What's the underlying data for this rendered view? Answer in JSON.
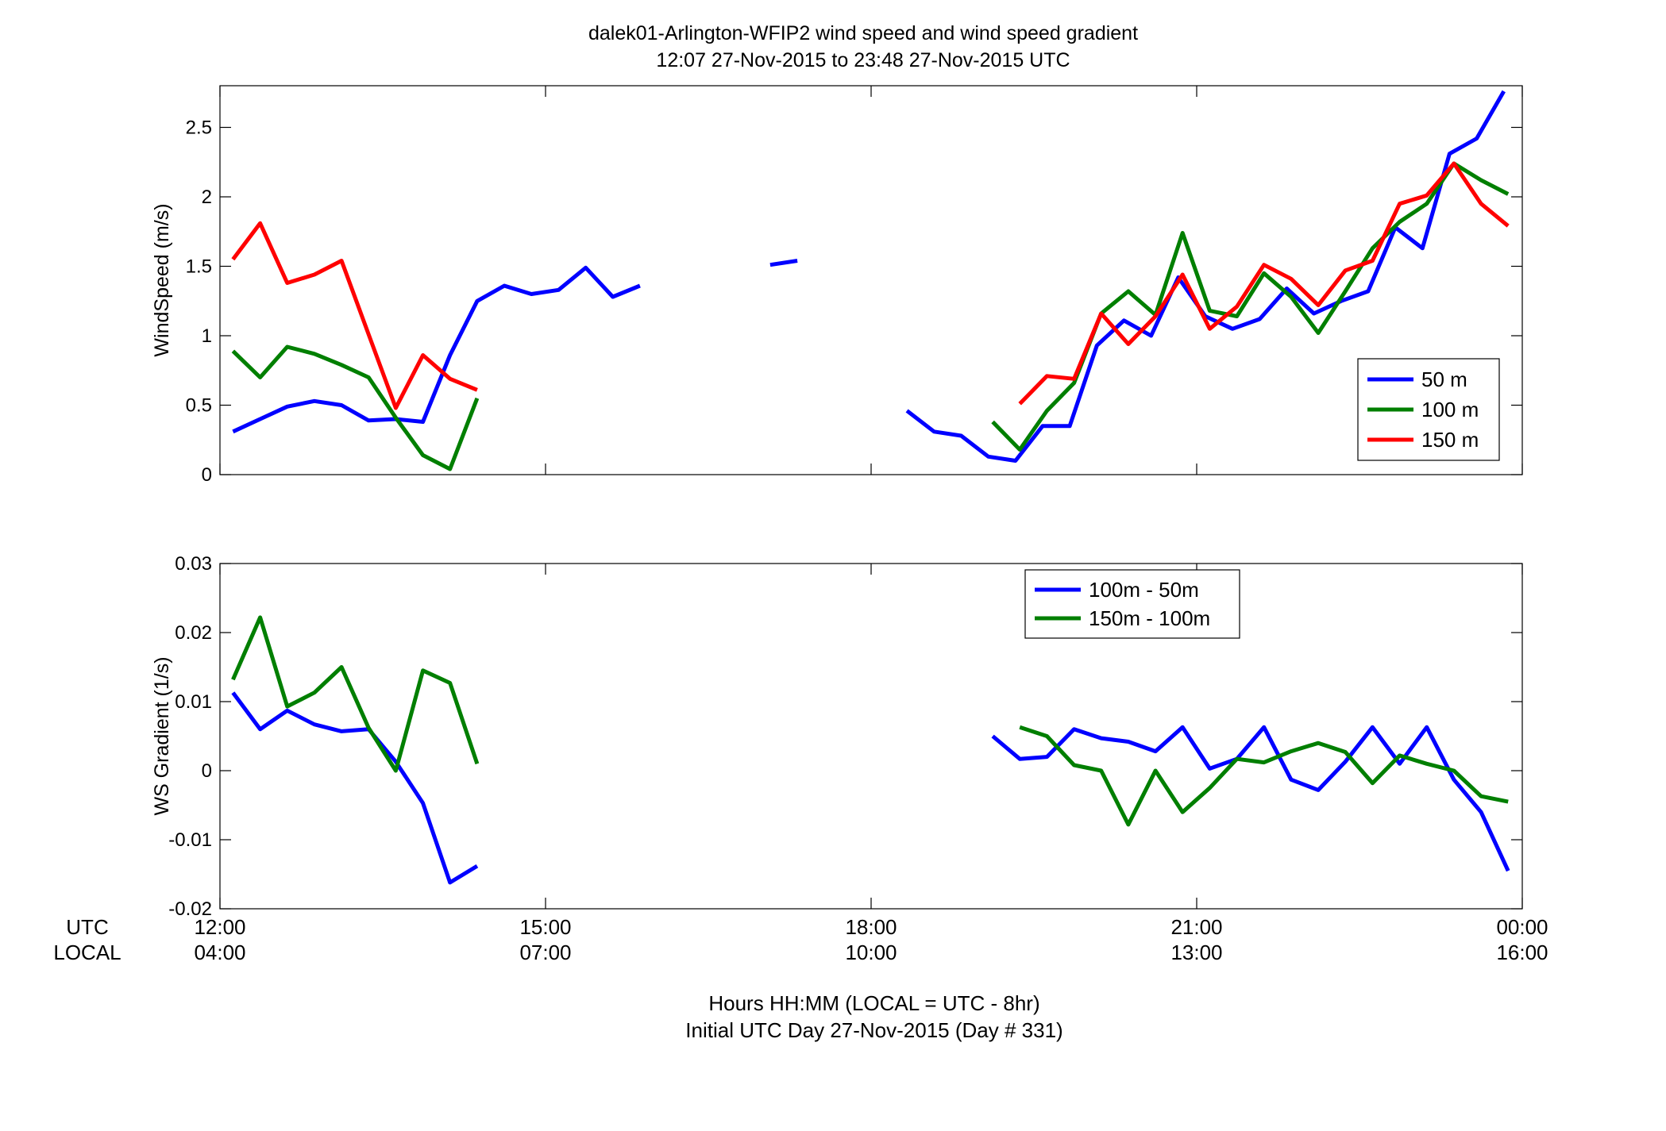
{
  "title": {
    "line1": "dalek01-Arlington-WFIP2  wind speed and wind speed gradient",
    "line2": "12:07 27-Nov-2015 to 23:48 27-Nov-2015  UTC"
  },
  "x_axis": {
    "row_labels": [
      "UTC",
      "LOCAL"
    ],
    "utc_ticks": [
      "12:00",
      "15:00",
      "18:00",
      "21:00",
      "00:00"
    ],
    "local_ticks": [
      "04:00",
      "07:00",
      "10:00",
      "13:00",
      "16:00"
    ],
    "caption_line1": "Hours HH:MM  (LOCAL = UTC - 8hr)",
    "caption_line2": "Initial UTC Day 27-Nov-2015 (Day # 331)"
  },
  "chart_data": [
    {
      "type": "line",
      "ylabel": "WindSpeed (m/s)",
      "xlim": [
        12,
        24
      ],
      "ylim": [
        0,
        2.8
      ],
      "yticks": [
        0,
        0.5,
        1,
        1.5,
        2,
        2.5
      ],
      "ytick_labels": [
        "0",
        "0.5",
        "1",
        "1.5",
        "2",
        "2.5"
      ],
      "xticks": [
        12,
        15,
        18,
        21,
        24
      ],
      "legend_position": "lower-right",
      "series": [
        {
          "name": "50 m",
          "color": "#0000FF",
          "segments": [
            [
              [
                12.12,
                0.31
              ],
              [
                12.37,
                0.4
              ],
              [
                12.62,
                0.49
              ],
              [
                12.87,
                0.53
              ],
              [
                13.12,
                0.5
              ],
              [
                13.37,
                0.39
              ],
              [
                13.62,
                0.4
              ],
              [
                13.87,
                0.38
              ],
              [
                14.12,
                0.86
              ],
              [
                14.37,
                1.25
              ],
              [
                14.62,
                1.36
              ],
              [
                14.87,
                1.3
              ],
              [
                15.12,
                1.33
              ],
              [
                15.37,
                1.49
              ],
              [
                15.62,
                1.28
              ],
              [
                15.87,
                1.36
              ]
            ],
            [
              [
                17.07,
                1.51
              ],
              [
                17.32,
                1.54
              ]
            ],
            [
              [
                18.33,
                0.46
              ],
              [
                18.58,
                0.31
              ],
              [
                18.83,
                0.28
              ],
              [
                19.08,
                0.13
              ],
              [
                19.33,
                0.1
              ],
              [
                19.58,
                0.35
              ],
              [
                19.83,
                0.35
              ],
              [
                20.08,
                0.93
              ],
              [
                20.33,
                1.11
              ],
              [
                20.58,
                1.0
              ],
              [
                20.83,
                1.42
              ],
              [
                21.08,
                1.14
              ],
              [
                21.33,
                1.05
              ],
              [
                21.58,
                1.12
              ],
              [
                21.83,
                1.34
              ],
              [
                22.08,
                1.16
              ],
              [
                22.33,
                1.25
              ],
              [
                22.58,
                1.32
              ],
              [
                22.83,
                1.78
              ],
              [
                23.08,
                1.63
              ],
              [
                23.33,
                2.31
              ],
              [
                23.58,
                2.42
              ],
              [
                23.83,
                2.76
              ]
            ]
          ]
        },
        {
          "name": "100 m",
          "color": "#007F00",
          "segments": [
            [
              [
                12.12,
                0.89
              ],
              [
                12.37,
                0.7
              ],
              [
                12.62,
                0.92
              ],
              [
                12.87,
                0.87
              ],
              [
                13.12,
                0.79
              ],
              [
                13.37,
                0.7
              ],
              [
                13.62,
                0.41
              ],
              [
                13.87,
                0.14
              ],
              [
                14.12,
                0.04
              ],
              [
                14.37,
                0.55
              ]
            ],
            [
              [
                19.12,
                0.38
              ],
              [
                19.37,
                0.18
              ],
              [
                19.62,
                0.46
              ],
              [
                19.87,
                0.66
              ],
              [
                20.12,
                1.16
              ],
              [
                20.37,
                1.32
              ],
              [
                20.62,
                1.15
              ],
              [
                20.87,
                1.74
              ],
              [
                21.12,
                1.18
              ],
              [
                21.37,
                1.14
              ],
              [
                21.62,
                1.45
              ],
              [
                21.87,
                1.28
              ],
              [
                22.12,
                1.02
              ],
              [
                22.37,
                1.32
              ],
              [
                22.62,
                1.63
              ],
              [
                22.87,
                1.82
              ],
              [
                23.12,
                1.95
              ],
              [
                23.37,
                2.24
              ],
              [
                23.62,
                2.12
              ],
              [
                23.87,
                2.02
              ]
            ]
          ]
        },
        {
          "name": "150 m",
          "color": "#FF0000",
          "segments": [
            [
              [
                12.12,
                1.55
              ],
              [
                12.37,
                1.81
              ],
              [
                12.62,
                1.38
              ],
              [
                12.87,
                1.44
              ],
              [
                13.12,
                1.54
              ],
              [
                13.37,
                1.01
              ],
              [
                13.62,
                0.48
              ],
              [
                13.87,
                0.86
              ],
              [
                14.12,
                0.69
              ],
              [
                14.37,
                0.61
              ]
            ],
            [
              [
                19.37,
                0.51
              ],
              [
                19.62,
                0.71
              ],
              [
                19.87,
                0.69
              ],
              [
                20.12,
                1.16
              ],
              [
                20.37,
                0.94
              ],
              [
                20.62,
                1.14
              ],
              [
                20.87,
                1.44
              ],
              [
                21.12,
                1.05
              ],
              [
                21.37,
                1.21
              ],
              [
                21.62,
                1.51
              ],
              [
                21.87,
                1.41
              ],
              [
                22.12,
                1.22
              ],
              [
                22.37,
                1.47
              ],
              [
                22.62,
                1.54
              ],
              [
                22.87,
                1.95
              ],
              [
                23.12,
                2.01
              ],
              [
                23.37,
                2.24
              ],
              [
                23.62,
                1.95
              ],
              [
                23.87,
                1.79
              ]
            ]
          ]
        }
      ]
    },
    {
      "type": "line",
      "ylabel": "WS Gradient (1/s)",
      "xlim": [
        12,
        24
      ],
      "ylim": [
        -0.02,
        0.03
      ],
      "yticks": [
        -0.02,
        -0.01,
        0,
        0.01,
        0.02,
        0.03
      ],
      "ytick_labels": [
        "-0.02",
        "-0.01",
        "0",
        "0.01",
        "0.02",
        "0.03"
      ],
      "xticks": [
        12,
        15,
        18,
        21,
        24
      ],
      "legend_position": "top-center",
      "series": [
        {
          "name": "100m - 50m",
          "color": "#0000FF",
          "segments": [
            [
              [
                12.12,
                0.0113
              ],
              [
                12.37,
                0.006
              ],
              [
                12.62,
                0.0087
              ],
              [
                12.87,
                0.0067
              ],
              [
                13.12,
                0.0057
              ],
              [
                13.37,
                0.006
              ],
              [
                13.62,
                0.0013
              ],
              [
                13.87,
                -0.0047
              ],
              [
                14.12,
                -0.0162
              ],
              [
                14.37,
                -0.0138
              ]
            ],
            [
              [
                19.12,
                0.005
              ],
              [
                19.37,
                0.0017
              ],
              [
                19.62,
                0.002
              ],
              [
                19.87,
                0.006
              ],
              [
                20.12,
                0.0047
              ],
              [
                20.37,
                0.0042
              ],
              [
                20.62,
                0.0028
              ],
              [
                20.87,
                0.0063
              ],
              [
                21.12,
                0.0003
              ],
              [
                21.37,
                0.0017
              ],
              [
                21.62,
                0.0063
              ],
              [
                21.87,
                -0.0013
              ],
              [
                22.12,
                -0.0028
              ],
              [
                22.37,
                0.0013
              ],
              [
                22.62,
                0.0063
              ],
              [
                22.87,
                0.001
              ],
              [
                23.12,
                0.0063
              ],
              [
                23.37,
                -0.0013
              ],
              [
                23.62,
                -0.006
              ],
              [
                23.87,
                -0.0145
              ]
            ]
          ]
        },
        {
          "name": "150m - 100m",
          "color": "#007F00",
          "segments": [
            [
              [
                12.12,
                0.0132
              ],
              [
                12.37,
                0.0222
              ],
              [
                12.62,
                0.0093
              ],
              [
                12.87,
                0.0113
              ],
              [
                13.12,
                0.015
              ],
              [
                13.37,
                0.0062
              ],
              [
                13.62,
                0.0
              ],
              [
                13.87,
                0.0145
              ],
              [
                14.12,
                0.0127
              ],
              [
                14.37,
                0.001
              ]
            ],
            [
              [
                19.37,
                0.0063
              ],
              [
                19.62,
                0.005
              ],
              [
                19.87,
                0.0008
              ],
              [
                20.12,
                0.0
              ],
              [
                20.37,
                -0.0078
              ],
              [
                20.62,
                0.0
              ],
              [
                20.87,
                -0.006
              ],
              [
                21.12,
                -0.0025
              ],
              [
                21.37,
                0.0017
              ],
              [
                21.62,
                0.0012
              ],
              [
                21.87,
                0.0028
              ],
              [
                22.12,
                0.004
              ],
              [
                22.37,
                0.0027
              ],
              [
                22.62,
                -0.0018
              ],
              [
                22.87,
                0.0022
              ],
              [
                23.12,
                0.001
              ],
              [
                23.37,
                0.0
              ],
              [
                23.62,
                -0.0037
              ],
              [
                23.87,
                -0.0045
              ]
            ]
          ]
        }
      ]
    }
  ]
}
